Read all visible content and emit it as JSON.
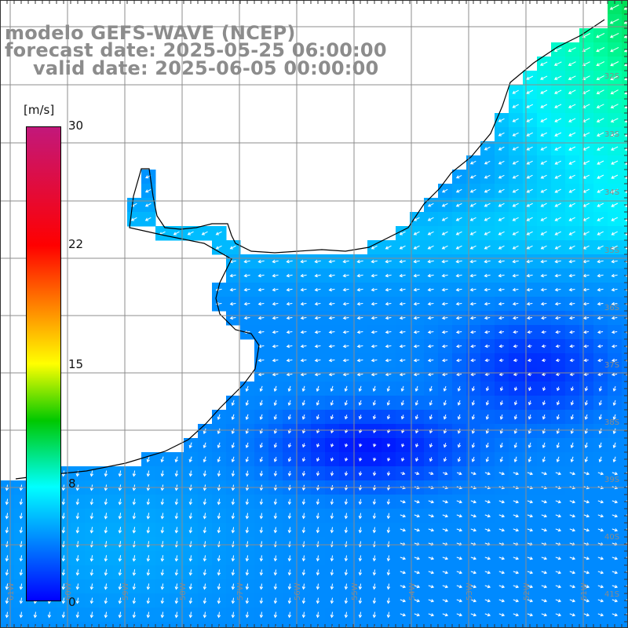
{
  "titles": {
    "model": "modelo GEFS-WAVE (NCEP)",
    "forecast": "forecast date: 2025-05-25 06:00:00",
    "valid": "valid date: 2025-06-05 00:00:00"
  },
  "colorbar": {
    "units": "[m/s]",
    "ticks": [
      "30",
      "22",
      "15",
      "8",
      "0"
    ],
    "colors": [
      "#c2187b",
      "#ff0000",
      "#ffff00",
      "#00c800",
      "#00ffff",
      "#0000ff"
    ]
  },
  "grid": {
    "lat_labels": [
      "32S",
      "33S",
      "34S",
      "35S",
      "36S",
      "37S",
      "38S",
      "39S",
      "40S",
      "41S"
    ],
    "lon_labels": [
      "61W",
      "60W",
      "59W",
      "58W",
      "57W",
      "56W",
      "55W",
      "54W",
      "53W",
      "52W",
      "51W"
    ]
  },
  "map": {
    "land_color": "#ffffff",
    "coast_color": "#000000",
    "grid_color": "#8c8c8c",
    "arrow_color": "#ffffff"
  }
}
